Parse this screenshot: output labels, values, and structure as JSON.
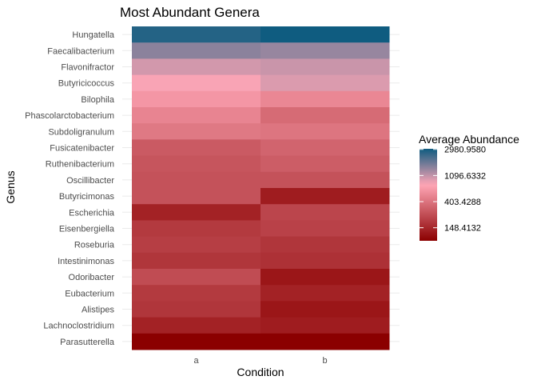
{
  "chart_data": {
    "type": "heatmap",
    "title": "Most Abundant Genera",
    "xlabel": "Condition",
    "ylabel": "Genus",
    "x_categories": [
      "a",
      "b"
    ],
    "y_categories": [
      "Hungatella",
      "Faecalibacterium",
      "Flavonifractor",
      "Butyricicoccus",
      "Bilophila",
      "Phascolarctobacterium",
      "Subdoligranulum",
      "Fusicatenibacter",
      "Ruthenibacterium",
      "Oscillibacter",
      "Butyricimonas",
      "Escherichia",
      "Eisenbergiella",
      "Roseburia",
      "Intestinimonas",
      "Odoribacter",
      "Eubacterium",
      "Alistipes",
      "Lachnoclostridium",
      "Parasutterella"
    ],
    "values": {
      "a": [
        2700,
        1500,
        1000,
        800,
        630,
        500,
        430,
        290,
        270,
        260,
        260,
        140,
        190,
        200,
        180,
        240,
        190,
        180,
        140,
        90
      ],
      "b": [
        3050,
        1400,
        1050,
        950,
        520,
        360,
        410,
        330,
        300,
        260,
        130,
        220,
        210,
        180,
        170,
        120,
        140,
        120,
        130,
        90
      ]
    },
    "color_scale": {
      "type": "log",
      "low_color": "#8b0000",
      "mid_color": "#ffa6b6",
      "high_color": "#0f5c80"
    },
    "legend": {
      "title": "Average Abundance",
      "position": "right",
      "breaks": [
        "2980.9580",
        "1096.6332",
        "403.4288",
        "148.4132"
      ],
      "break_values": [
        2980.958,
        1096.6332,
        403.4288,
        148.4132
      ]
    },
    "grid": true
  }
}
